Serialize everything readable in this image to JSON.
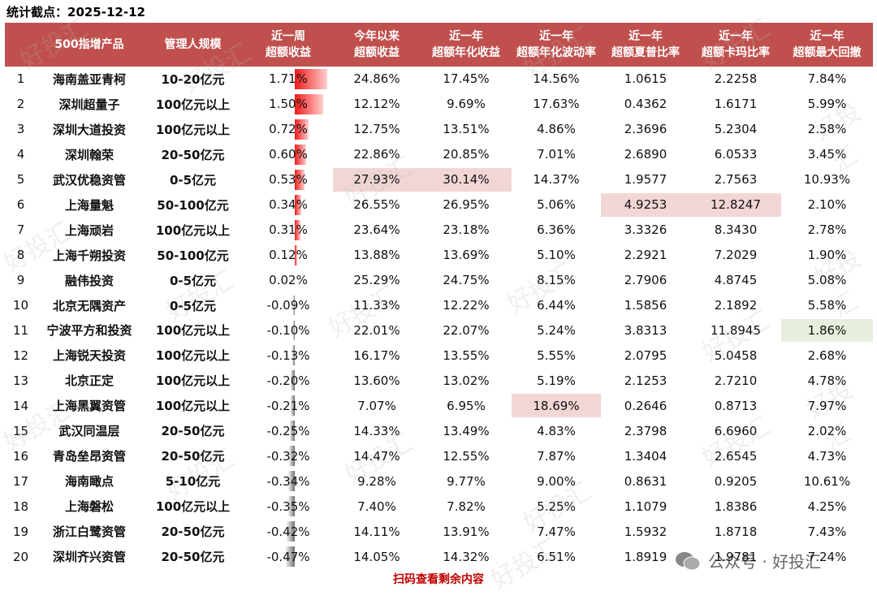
{
  "header": {
    "title": "统计截点：2025-12-12"
  },
  "table": {
    "columns": [
      [
        ""
      ],
      [
        "500指增产品"
      ],
      [
        "管理人规模"
      ],
      [
        "近一周",
        "超额收益"
      ],
      [
        "今年以来",
        "超额收益"
      ],
      [
        "近一年",
        "超额年化收益"
      ],
      [
        "近一年",
        "超额年化波动率"
      ],
      [
        "近一年",
        "超额夏普比率"
      ],
      [
        "近一年",
        "超额卡玛比率"
      ],
      [
        "近一年",
        "超额最大回撤"
      ]
    ],
    "rows": [
      [
        "1",
        "海南盖亚青柯",
        "10-20亿元",
        "1.71%",
        "24.86%",
        "17.45%",
        "14.56%",
        "1.0615",
        "2.2258",
        "7.84%"
      ],
      [
        "2",
        "深圳超量子",
        "100亿元以上",
        "1.50%",
        "12.12%",
        "9.69%",
        "17.63%",
        "0.4362",
        "1.6171",
        "5.99%"
      ],
      [
        "3",
        "深圳大道投资",
        "100亿元以上",
        "0.72%",
        "12.75%",
        "13.51%",
        "4.86%",
        "2.3696",
        "5.2304",
        "2.58%"
      ],
      [
        "4",
        "深圳翰荣",
        "20-50亿元",
        "0.60%",
        "22.86%",
        "20.85%",
        "7.01%",
        "2.6890",
        "6.0533",
        "3.45%"
      ],
      [
        "5",
        "武汉优稳资管",
        "0-5亿元",
        "0.53%",
        "27.93%",
        "30.14%",
        "14.37%",
        "1.9577",
        "2.7563",
        "10.93%"
      ],
      [
        "6",
        "上海量魁",
        "50-100亿元",
        "0.34%",
        "26.55%",
        "26.95%",
        "5.06%",
        "4.9253",
        "12.8247",
        "2.10%"
      ],
      [
        "7",
        "上海顽岩",
        "100亿元以上",
        "0.31%",
        "23.64%",
        "23.18%",
        "6.36%",
        "3.3326",
        "8.3430",
        "2.78%"
      ],
      [
        "8",
        "上海千朔投资",
        "50-100亿元",
        "0.12%",
        "13.88%",
        "13.69%",
        "5.10%",
        "2.2921",
        "7.2029",
        "1.90%"
      ],
      [
        "9",
        "融伟投资",
        "0-5亿元",
        "0.02%",
        "25.29%",
        "24.75%",
        "8.15%",
        "2.7906",
        "4.8745",
        "5.08%"
      ],
      [
        "10",
        "北京无隅资产",
        "0-5亿元",
        "-0.09%",
        "11.33%",
        "12.22%",
        "6.44%",
        "1.5856",
        "2.1892",
        "5.58%"
      ],
      [
        "11",
        "宁波平方和投资",
        "100亿元以上",
        "-0.10%",
        "22.01%",
        "22.07%",
        "5.24%",
        "3.8313",
        "11.8945",
        "1.86%"
      ],
      [
        "12",
        "上海锐天投资",
        "100亿元以上",
        "-0.13%",
        "16.17%",
        "13.55%",
        "5.55%",
        "2.0795",
        "5.0458",
        "2.68%"
      ],
      [
        "13",
        "北京正定",
        "100亿元以上",
        "-0.20%",
        "13.60%",
        "13.02%",
        "5.19%",
        "2.1253",
        "2.7210",
        "4.78%"
      ],
      [
        "14",
        "上海黑翼资管",
        "100亿元以上",
        "-0.21%",
        "7.07%",
        "6.95%",
        "18.69%",
        "0.2646",
        "0.8713",
        "7.97%"
      ],
      [
        "15",
        "武汉同温层",
        "20-50亿元",
        "-0.25%",
        "14.33%",
        "13.49%",
        "4.83%",
        "2.3798",
        "6.6960",
        "2.02%"
      ],
      [
        "16",
        "青岛垒昂资管",
        "20-50亿元",
        "-0.32%",
        "14.47%",
        "12.55%",
        "7.87%",
        "1.3404",
        "2.6545",
        "4.73%"
      ],
      [
        "17",
        "海南瞰点",
        "5-10亿元",
        "-0.34%",
        "9.28%",
        "9.77%",
        "9.00%",
        "0.8631",
        "0.9205",
        "10.61%"
      ],
      [
        "18",
        "上海磐松",
        "100亿元以上",
        "-0.35%",
        "7.40%",
        "7.82%",
        "5.25%",
        "1.1079",
        "1.8386",
        "4.25%"
      ],
      [
        "19",
        "浙江白鹭资管",
        "20-50亿元",
        "-0.42%",
        "14.11%",
        "13.91%",
        "7.47%",
        "1.5932",
        "1.8718",
        "7.43%"
      ],
      [
        "20",
        "深圳齐兴资管",
        "20-50亿元",
        "-0.47%",
        "14.05%",
        "14.32%",
        "6.51%",
        "1.8919",
        "1.9781",
        "7.24%"
      ]
    ]
  },
  "footer": {
    "text": "扫码查看剩余内容",
    "badge": "公众号 · 好投汇"
  },
  "watermark": "好投汇"
}
